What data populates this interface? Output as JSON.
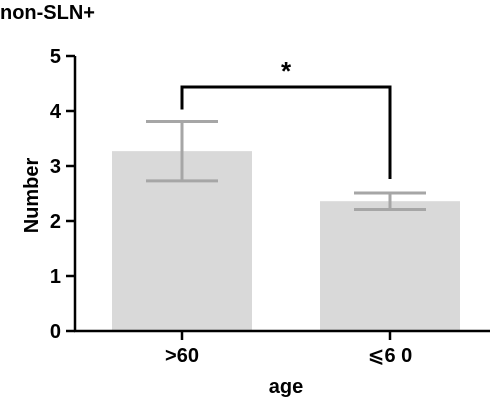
{
  "chart_data": {
    "type": "bar",
    "title": "non-SLN+",
    "xlabel": "age",
    "ylabel": "Number",
    "categories": [
      ">60",
      "⩽6 0"
    ],
    "values": [
      3.27,
      2.36
    ],
    "error_bars": [
      {
        "low": 2.73,
        "high": 3.81
      },
      {
        "low": 2.21,
        "high": 2.51
      }
    ],
    "ylim": [
      0,
      5
    ],
    "yticks": [
      "0",
      "1",
      "2",
      "3",
      "4",
      "5"
    ],
    "significance": {
      "label": "*",
      "between": [
        0,
        1
      ]
    },
    "grid": false,
    "colors": {
      "bar": "#d9d9d9",
      "error_bar": "#a6a6a6",
      "axis": "#000000",
      "bracket": "#000000"
    }
  }
}
